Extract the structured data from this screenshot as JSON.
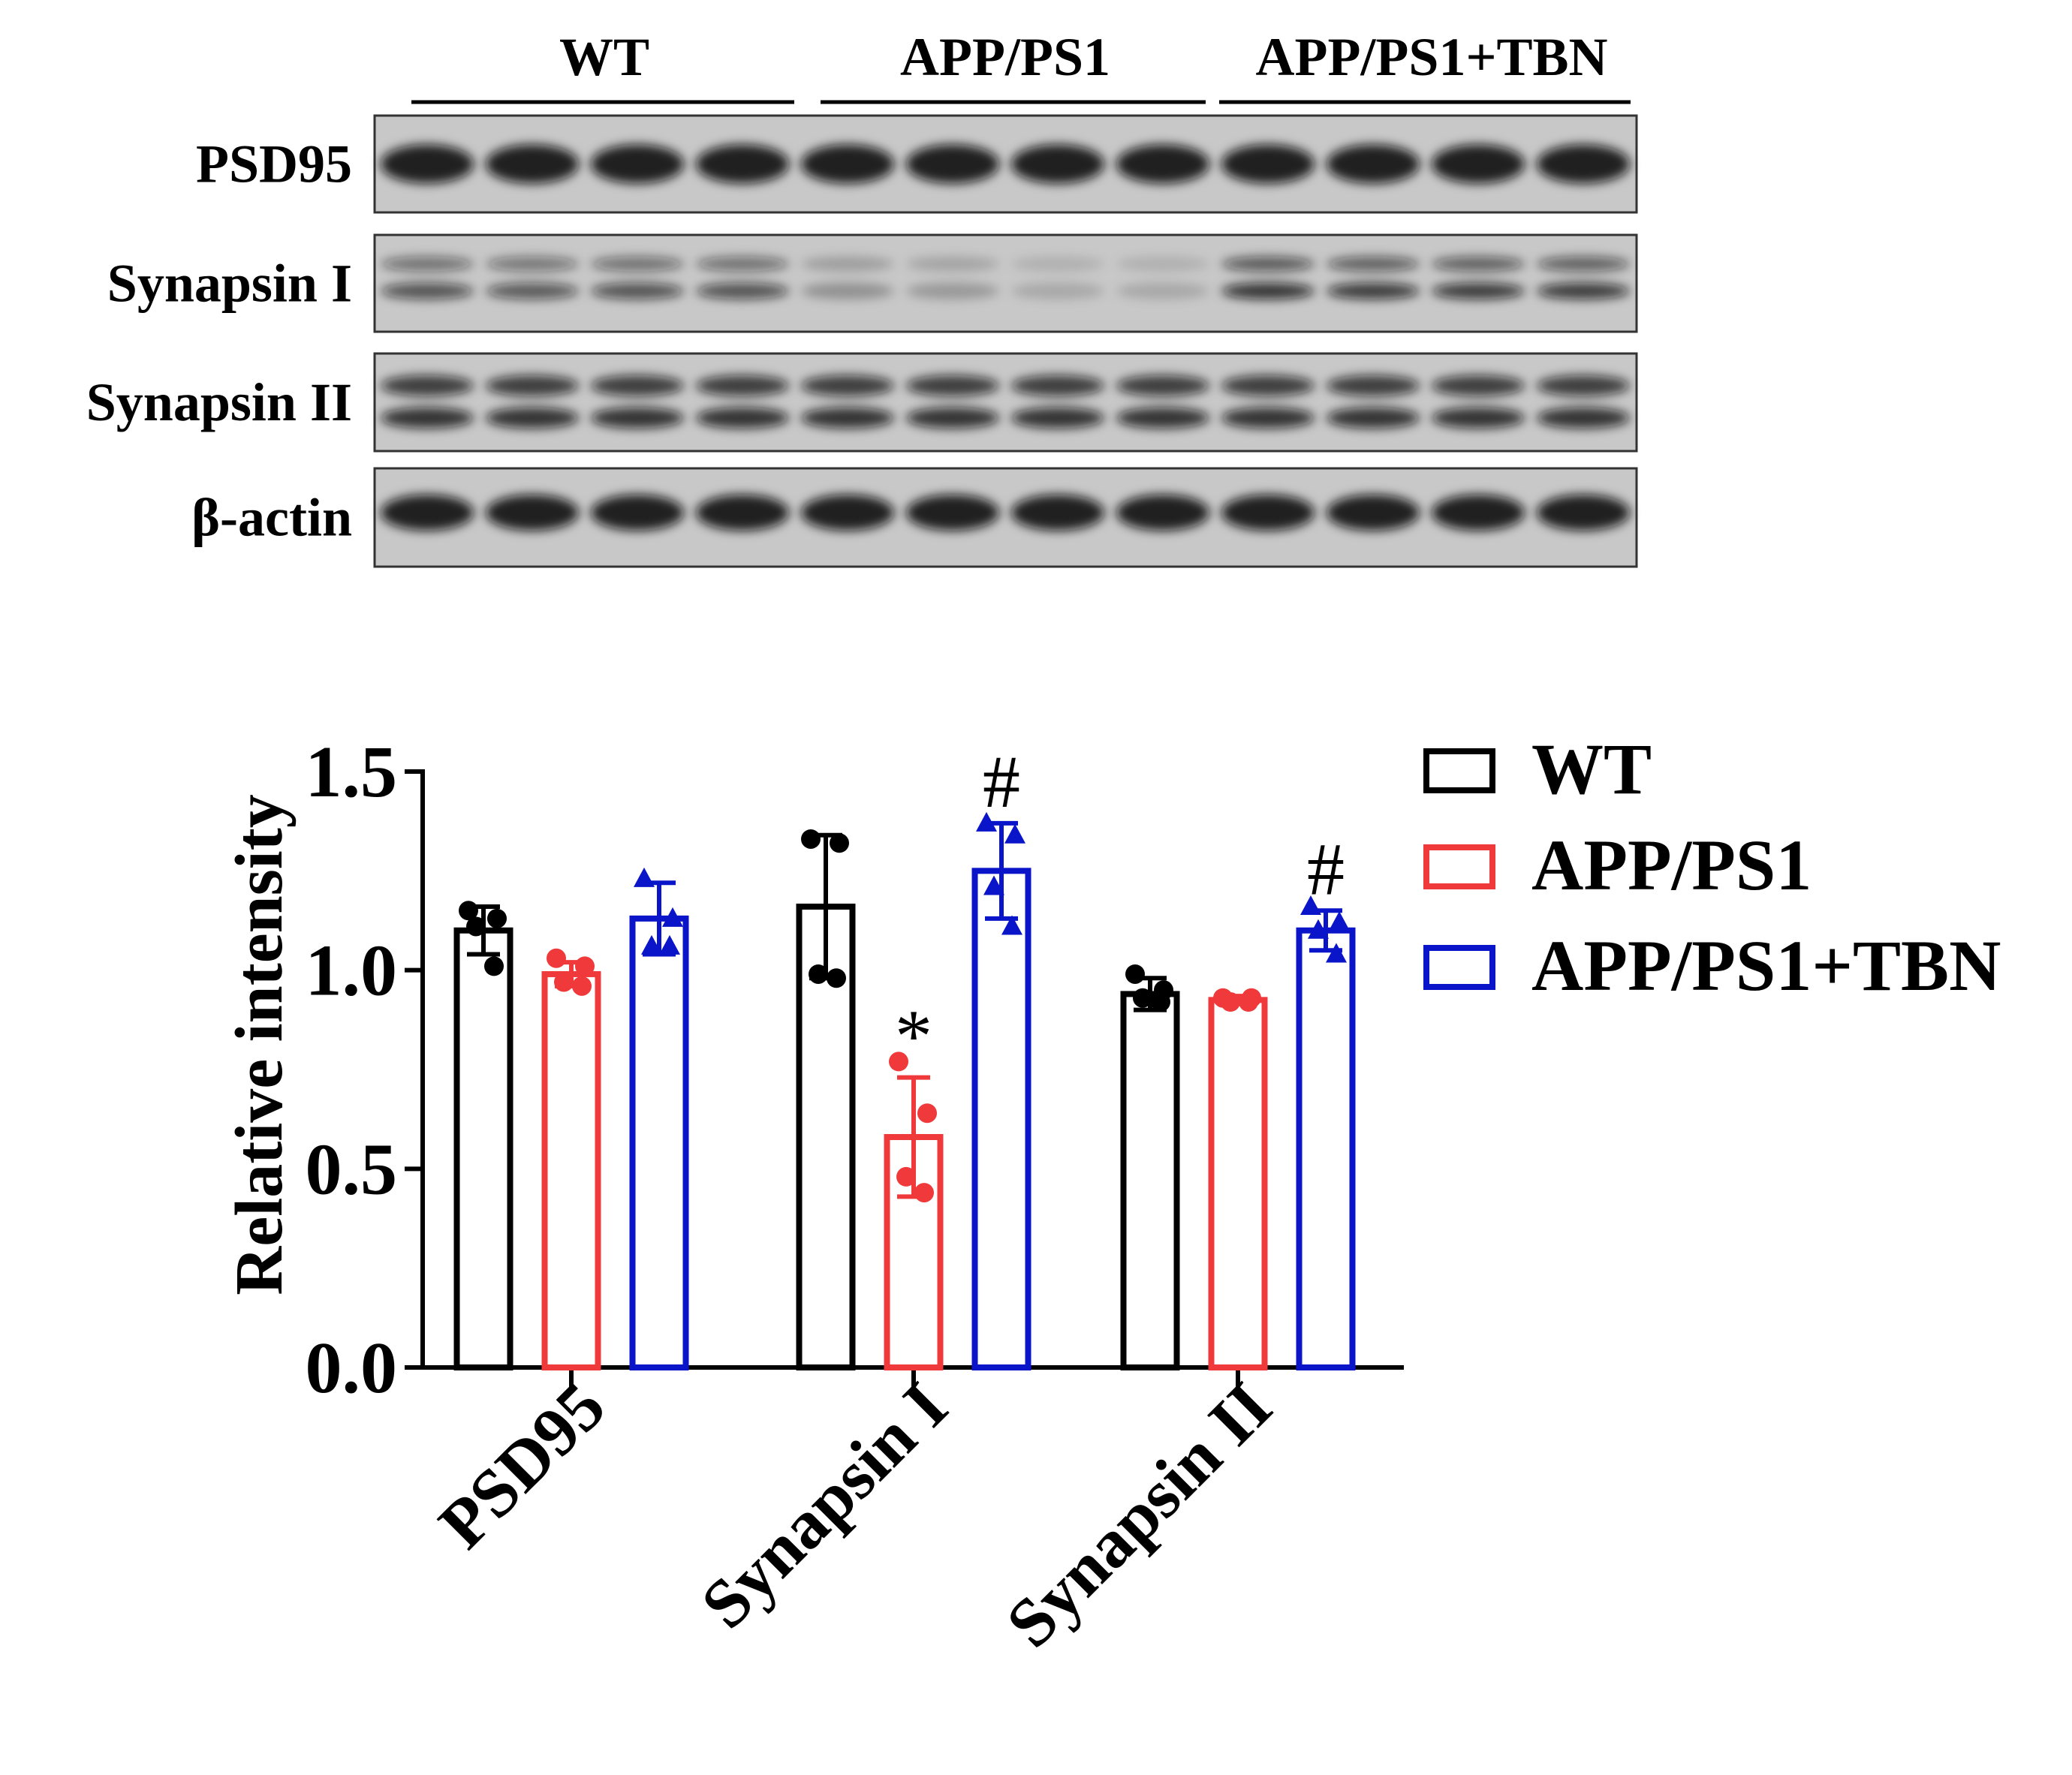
{
  "blot": {
    "groups": [
      "WT",
      "APP/PS1",
      "APP/PS1+TBN"
    ],
    "rows": [
      "PSD95",
      "Synapsin I",
      "Synapsin II",
      "β-actin"
    ]
  },
  "chart_data": {
    "type": "bar",
    "y_label": "Relative intensity",
    "categories": [
      "PSD95",
      "Synapsin I",
      "Synapsin II"
    ],
    "series": [
      {
        "name": "WT",
        "color": "#000000",
        "marker": "circle",
        "values": [
          1.1,
          1.16,
          0.94
        ],
        "errors": [
          0.06,
          0.18,
          0.04
        ],
        "points": [
          [
            1.15,
            1.13,
            1.11,
            1.01
          ],
          [
            1.33,
            1.32,
            0.99,
            0.98
          ],
          [
            0.99,
            0.95,
            0.93,
            0.92
          ]
        ],
        "significance": [
          null,
          null,
          null
        ]
      },
      {
        "name": "APP/PS1",
        "color": "#f0393a",
        "marker": "circle",
        "values": [
          0.99,
          0.58,
          0.925
        ],
        "errors": [
          0.03,
          0.15,
          0.01
        ],
        "points": [
          [
            1.03,
            1.01,
            0.97,
            0.96
          ],
          [
            0.77,
            0.64,
            0.48,
            0.44
          ],
          [
            0.93,
            0.93,
            0.92,
            0.92
          ]
        ],
        "significance": [
          null,
          "*",
          null
        ]
      },
      {
        "name": "APP/PS1+TBN",
        "color": "#0a14c8",
        "marker": "triangle",
        "values": [
          1.13,
          1.25,
          1.1
        ],
        "errors": [
          0.09,
          0.12,
          0.05
        ],
        "points": [
          [
            1.23,
            1.13,
            1.06,
            1.06
          ],
          [
            1.37,
            1.34,
            1.21,
            1.11
          ],
          [
            1.16,
            1.12,
            1.1,
            1.04
          ]
        ],
        "significance": [
          null,
          "#",
          "#"
        ]
      }
    ],
    "ylim": [
      0,
      1.5
    ],
    "yticks": [
      {
        "value": 0,
        "label": "0.0"
      },
      {
        "value": 0.5,
        "label": "0.5"
      },
      {
        "value": 1,
        "label": "1.0"
      },
      {
        "value": 1.5,
        "label": "1.5"
      }
    ]
  }
}
